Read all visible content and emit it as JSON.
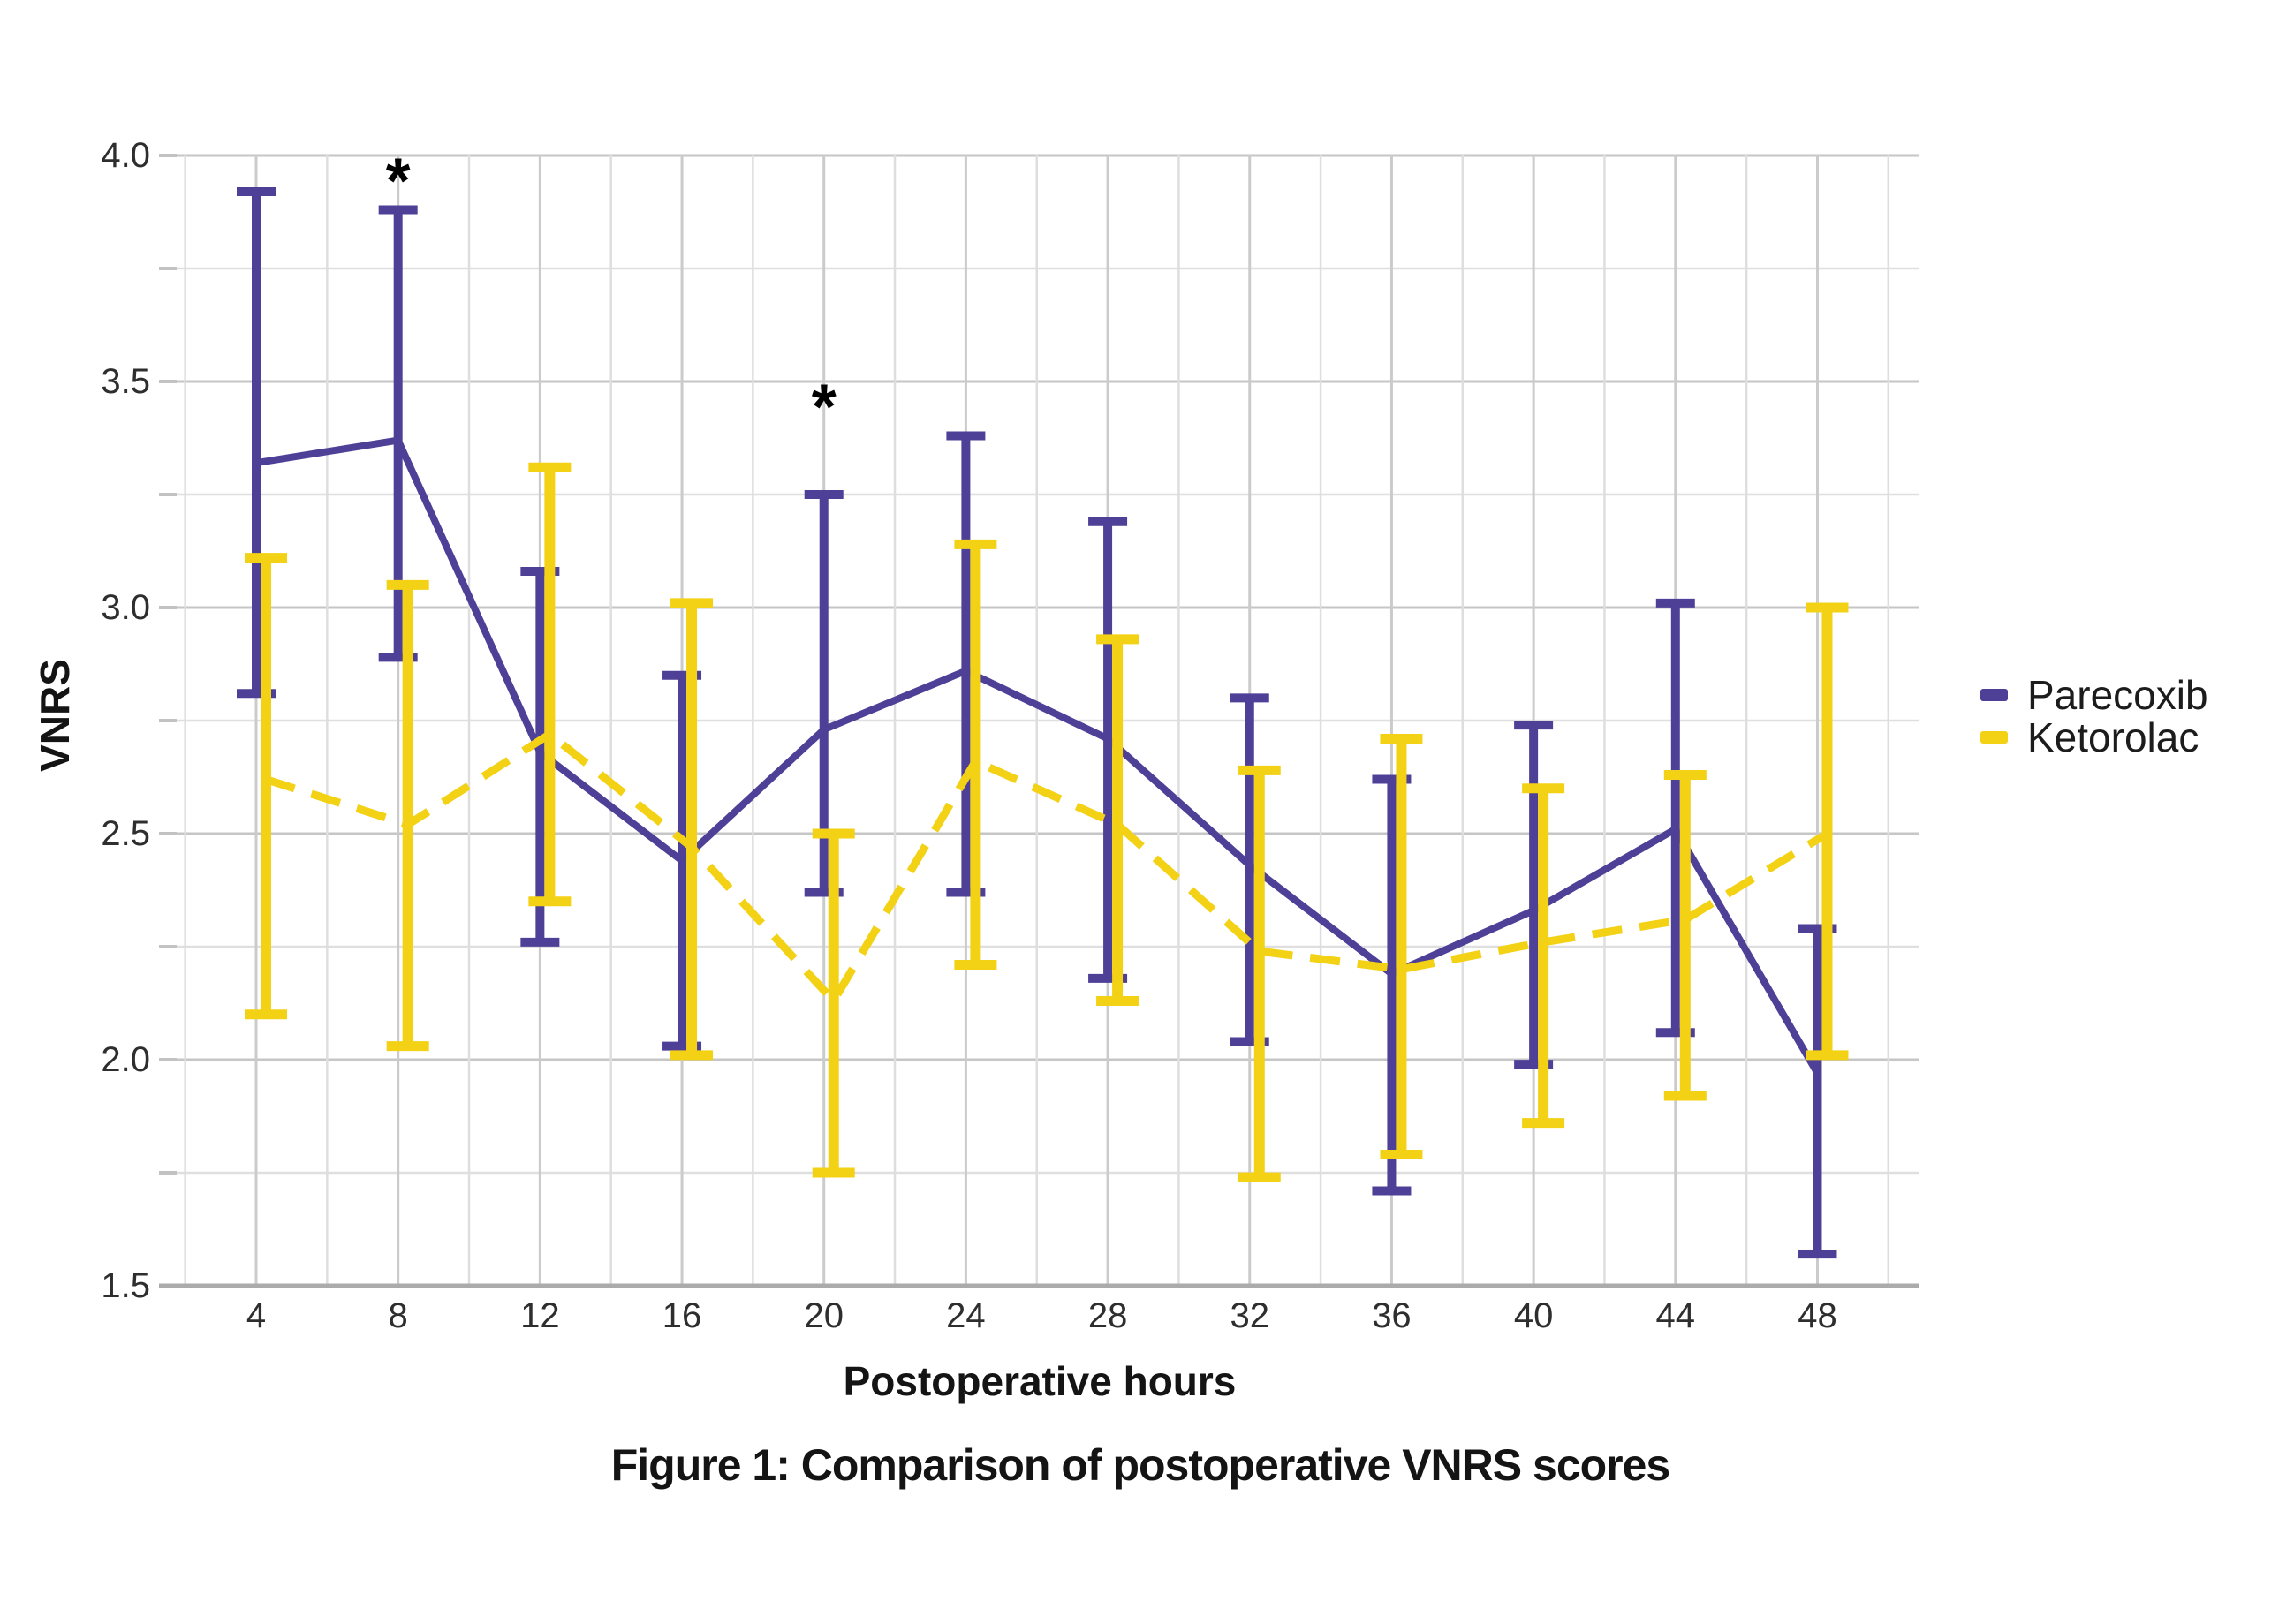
{
  "figure": {
    "caption": "Figure 1: Comparison of postoperative VNRS scores"
  },
  "chart_data": {
    "type": "line",
    "caption": "Figure 1: Comparison of postoperative VNRS scores",
    "xlabel": "Postoperative hours",
    "ylabel": "VNRS",
    "x": [
      4,
      8,
      12,
      16,
      20,
      24,
      28,
      32,
      36,
      40,
      44,
      48
    ],
    "ylim": [
      1.5,
      4.0
    ],
    "y_major_ticks": [
      4.0,
      3.5,
      3.0,
      2.5,
      2.0,
      1.5
    ],
    "y_minor_step": 0.25,
    "x_minor_step": 2,
    "grid": "on",
    "legend_position": "right",
    "series": [
      {
        "name": "Parecoxib",
        "color": "#4e3f97",
        "style": "solid",
        "mean": [
          3.32,
          3.37,
          2.68,
          2.44,
          2.73,
          2.86,
          2.71,
          2.43,
          2.19,
          2.33,
          2.51,
          1.97
        ],
        "upper": [
          3.92,
          3.88,
          3.08,
          2.85,
          3.25,
          3.38,
          3.19,
          2.8,
          2.62,
          2.74,
          3.01,
          2.29
        ],
        "lower": [
          2.81,
          2.89,
          2.26,
          2.03,
          2.37,
          2.37,
          2.18,
          2.04,
          1.71,
          1.99,
          2.06,
          1.57
        ]
      },
      {
        "name": "Ketorolac",
        "color": "#f3d114",
        "style": "dashed",
        "mean": [
          2.62,
          2.52,
          2.72,
          2.47,
          2.13,
          2.66,
          2.52,
          2.24,
          2.2,
          2.26,
          2.31,
          2.5
        ],
        "upper": [
          3.11,
          3.05,
          3.31,
          3.01,
          2.5,
          3.14,
          2.93,
          2.64,
          2.71,
          2.6,
          2.63,
          3.0
        ],
        "lower": [
          2.1,
          2.03,
          2.35,
          2.01,
          1.75,
          2.21,
          2.13,
          1.74,
          1.79,
          1.86,
          1.92,
          2.01
        ]
      }
    ],
    "annotations": [
      {
        "symbol": "*",
        "x": 8,
        "y": 3.96
      },
      {
        "symbol": "*",
        "x": 20,
        "y": 3.46
      }
    ]
  },
  "style": {
    "grid_minor_color": "#dfdfdf",
    "grid_major_color": "#c6c6c6",
    "axis_line_color": "#ababab",
    "tick_stub_color": "#c2c2c2"
  }
}
